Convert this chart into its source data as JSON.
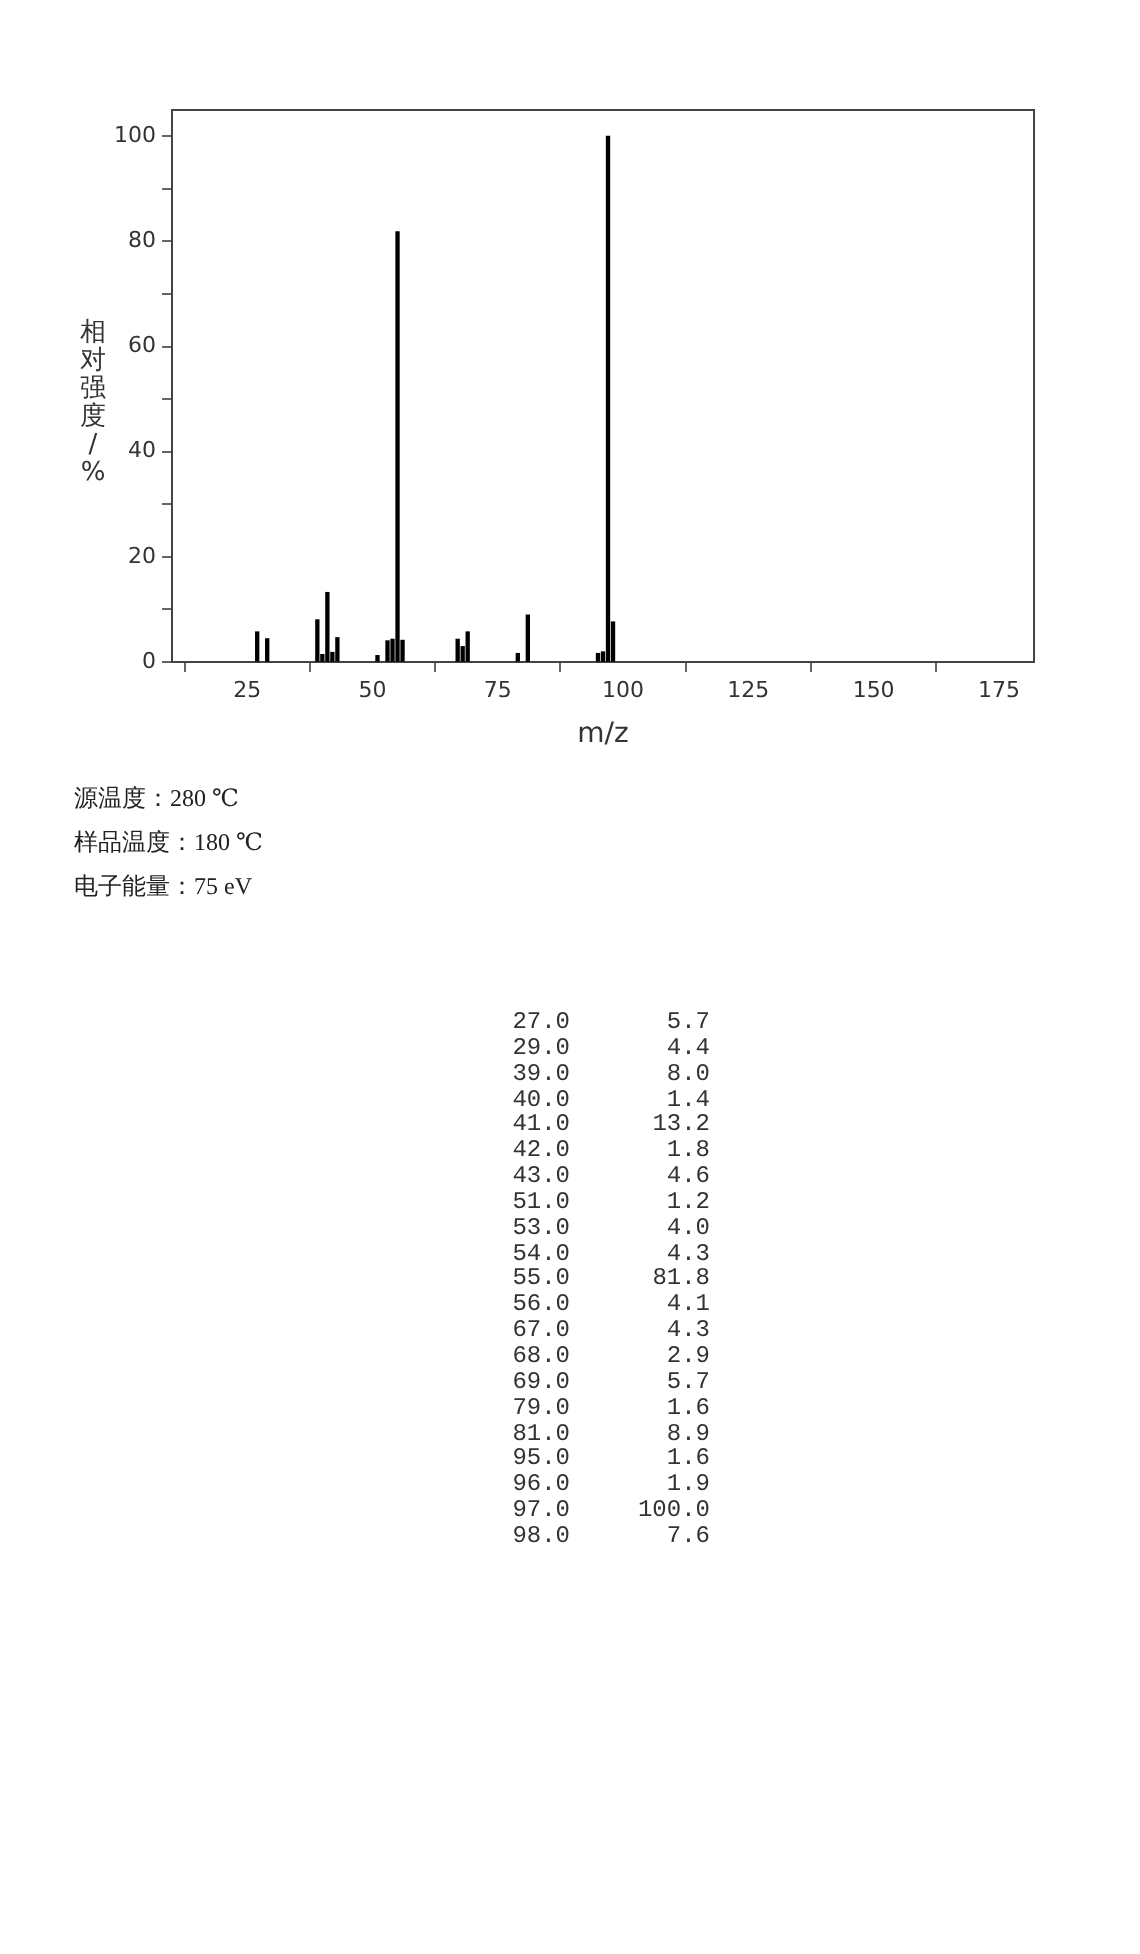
{
  "chart_data": [
    {
      "type": "bar",
      "xlabel": "m/z",
      "ylabel": "相对强度/%",
      "x": [
        27,
        29,
        39,
        40,
        41,
        42,
        43,
        51,
        53,
        54,
        55,
        56,
        67,
        68,
        69,
        79,
        81,
        95,
        96,
        97,
        98
      ],
      "values": [
        5.7,
        4.4,
        8.0,
        1.4,
        13.2,
        1.8,
        4.6,
        1.2,
        4.0,
        4.3,
        81.8,
        4.1,
        4.3,
        2.9,
        5.7,
        1.6,
        8.9,
        1.6,
        1.9,
        100.0,
        7.6
      ],
      "color": "#000000",
      "xlim": [
        10,
        182
      ],
      "xticks": [
        25,
        50,
        75,
        100,
        125,
        150,
        175
      ],
      "ylim": [
        0,
        105
      ],
      "yticks": [
        0,
        {
          "value": 10,
          "label": null
        },
        20,
        {
          "value": 30,
          "label": null
        },
        40,
        {
          "value": 50,
          "label": null
        },
        60,
        {
          "value": 70,
          "label": null
        },
        80,
        {
          "value": 90,
          "label": null
        },
        100
      ],
      "grid": false,
      "legend": false,
      "annotations": [
        "源温度：280 ℃",
        "样品温度：180 ℃",
        "电子能量：75 eV"
      ]
    },
    {
      "type": "other",
      "categories": [
        "27.0",
        "29.0",
        "39.0",
        "40.0",
        "41.0",
        "42.0",
        "43.0",
        "51.0",
        "53.0",
        "54.0",
        "55.0",
        "56.0",
        "67.0",
        "68.0",
        "69.0",
        "79.0",
        "81.0",
        "95.0",
        "96.0",
        "97.0",
        "98.0"
      ],
      "value_labels": [
        "5.7",
        "4.4",
        "8.0",
        "1.4",
        "13.2",
        "1.8",
        "4.6",
        "1.2",
        "4.0",
        "4.3",
        "81.8",
        "4.1",
        "4.3",
        "2.9",
        "5.7",
        "1.6",
        "8.9",
        "1.6",
        "1.9",
        "100.0",
        "7.6"
      ]
    }
  ]
}
